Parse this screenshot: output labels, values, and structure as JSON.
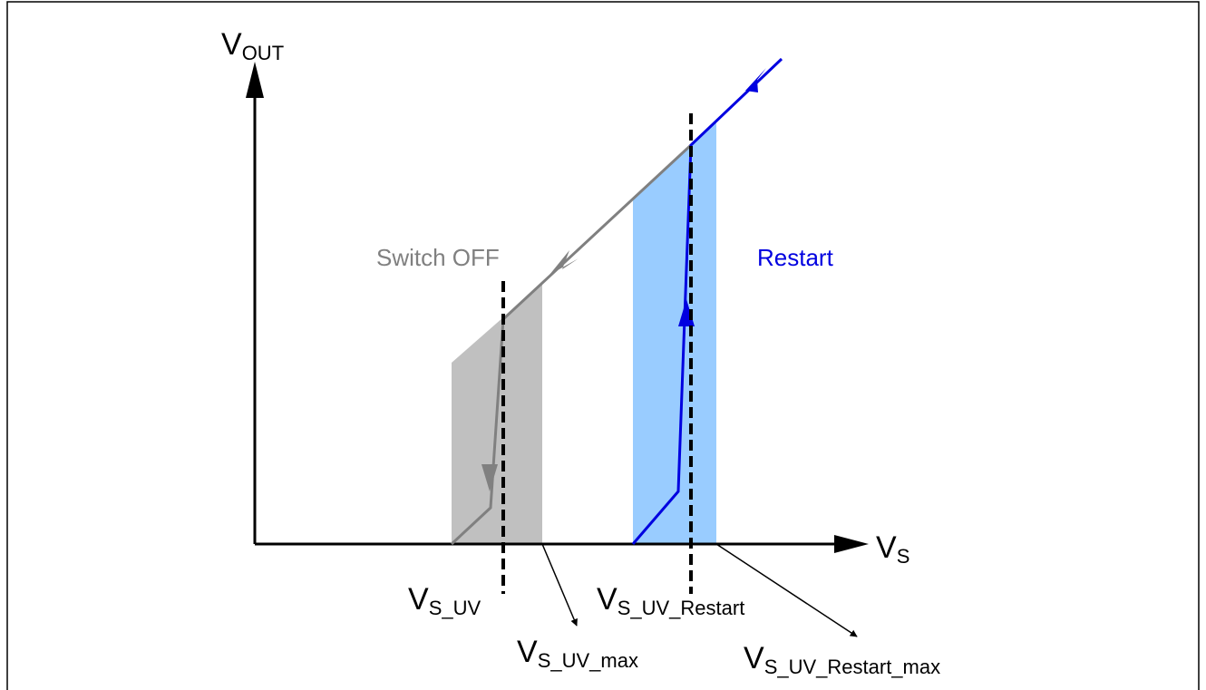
{
  "axes": {
    "y": {
      "main": "V",
      "sub": "OUT"
    },
    "x": {
      "main": "V",
      "sub": "S"
    }
  },
  "regions": {
    "switch_off": "Switch OFF",
    "restart": "Restart"
  },
  "thresholds": [
    {
      "main": "V",
      "sub": "S_UV"
    },
    {
      "main": "V",
      "sub": "S_UV_max"
    },
    {
      "main": "V",
      "sub": "S_UV_Restart"
    },
    {
      "main": "V",
      "sub": "S_UV_Restart_max"
    }
  ]
}
